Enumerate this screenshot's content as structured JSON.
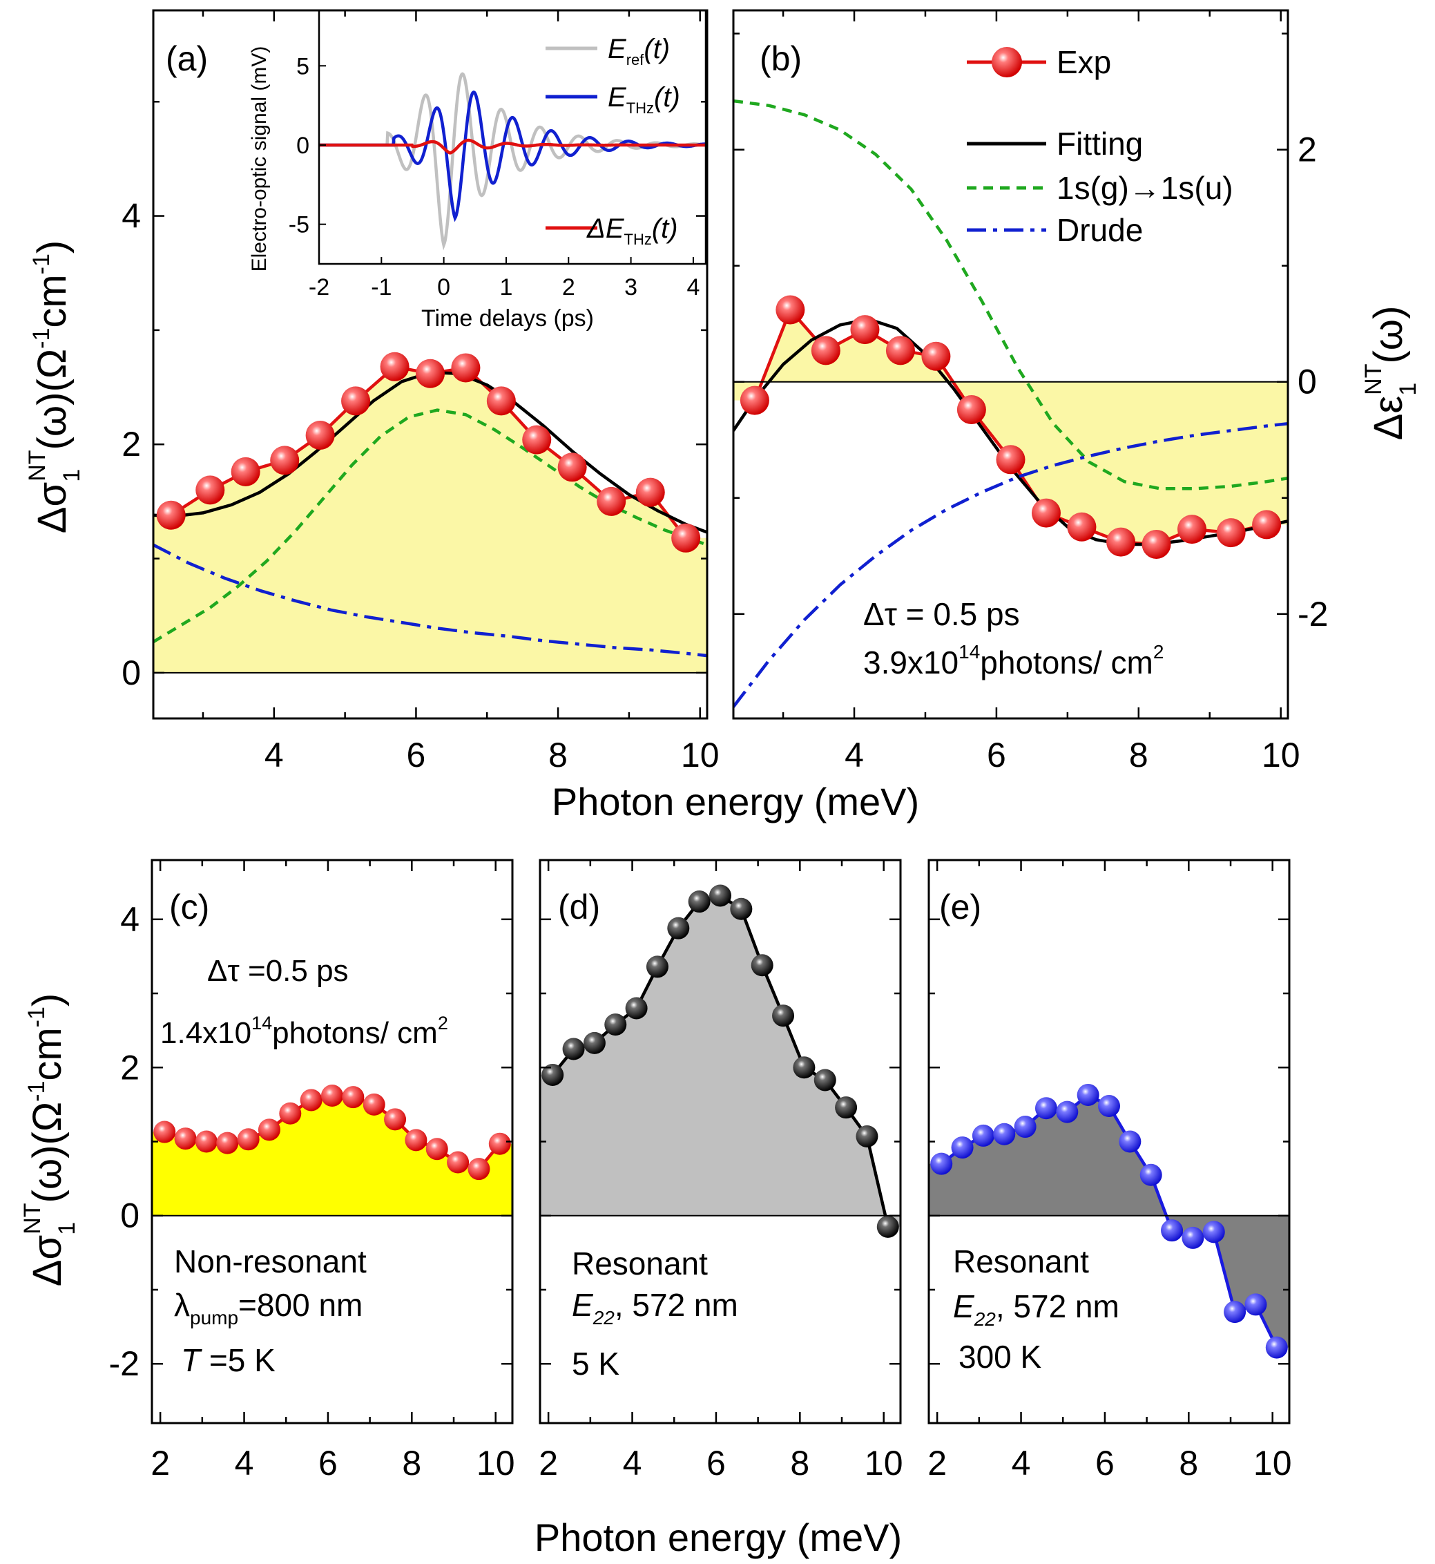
{
  "figure": {
    "xlabel_top": "Photon energy (meV)",
    "xlabel_bottom": "Photon energy (meV)",
    "ylabel_sigma": {
      "base": "Δσ",
      "sub": "1",
      "sup": "NT",
      "rest": "(ω)(Ω",
      "sup2": "-1",
      "rest2": "cm",
      "sup3": "-1",
      "close": ")"
    },
    "ylabel_eps": {
      "base": "Δε",
      "sub": "1",
      "sup": "NT",
      "rest": "(ω)"
    }
  },
  "colors": {
    "exp_red": "#e01010",
    "fit_black": "#000000",
    "exciton_green": "#1fa81f",
    "drude_blue": "#1020d0",
    "fill_yellow": "#fbf7a6",
    "fill_yellow_c": "#ffff00",
    "fill_light_gray": "#c0c0c0",
    "fill_dark_gray": "#808080",
    "ref_gray": "#c0c0c0",
    "dots_blue": "#1a1ae0"
  },
  "chart_data": [
    {
      "id": "a",
      "type": "line",
      "panel_label": "(a)",
      "xlim": [
        2.3,
        10.1
      ],
      "ylim": [
        -0.4,
        5.8
      ],
      "xticks": [
        4,
        6,
        8,
        10
      ],
      "yticks": [
        0,
        2,
        4
      ],
      "ylabel": "Δσ1NT(ω)(Ω-1cm-1)",
      "series": [
        {
          "name": "Exp",
          "style": "markers-line",
          "color": "#e01010",
          "x": [
            2.55,
            3.1,
            3.6,
            4.15,
            4.65,
            5.15,
            5.7,
            6.2,
            6.7,
            7.2,
            7.7,
            8.2,
            8.75,
            9.3,
            9.8
          ],
          "y": [
            1.38,
            1.6,
            1.76,
            1.86,
            2.08,
            2.38,
            2.68,
            2.62,
            2.67,
            2.38,
            2.04,
            1.8,
            1.5,
            1.58,
            1.18
          ]
        },
        {
          "name": "Fitting",
          "style": "line",
          "color": "#000000",
          "x": [
            2.3,
            2.6,
            3.0,
            3.4,
            3.8,
            4.2,
            4.6,
            5.0,
            5.4,
            5.8,
            6.2,
            6.6,
            7.0,
            7.4,
            7.8,
            8.2,
            8.6,
            9.0,
            9.4,
            9.8,
            10.1
          ],
          "y": [
            1.38,
            1.37,
            1.4,
            1.47,
            1.58,
            1.74,
            1.94,
            2.16,
            2.38,
            2.55,
            2.63,
            2.62,
            2.52,
            2.36,
            2.16,
            1.94,
            1.74,
            1.56,
            1.42,
            1.3,
            1.23
          ]
        },
        {
          "name": "1s(g)→1s(u)",
          "style": "dash",
          "color": "#1fa81f",
          "x": [
            2.3,
            2.7,
            3.1,
            3.5,
            3.9,
            4.3,
            4.7,
            5.1,
            5.5,
            5.9,
            6.3,
            6.7,
            7.1,
            7.5,
            7.9,
            8.3,
            8.7,
            9.1,
            9.5,
            10.1
          ],
          "y": [
            0.27,
            0.42,
            0.57,
            0.76,
            0.98,
            1.24,
            1.53,
            1.82,
            2.07,
            2.24,
            2.3,
            2.26,
            2.13,
            1.97,
            1.8,
            1.63,
            1.48,
            1.36,
            1.25,
            1.12
          ]
        },
        {
          "name": "Drude",
          "style": "dashdot",
          "color": "#1020d0",
          "x": [
            2.3,
            2.8,
            3.3,
            3.8,
            4.3,
            4.8,
            5.3,
            5.8,
            6.3,
            6.8,
            7.3,
            7.8,
            8.3,
            8.8,
            9.3,
            9.8,
            10.1
          ],
          "y": [
            1.12,
            0.96,
            0.83,
            0.72,
            0.63,
            0.55,
            0.49,
            0.44,
            0.39,
            0.35,
            0.32,
            0.28,
            0.25,
            0.22,
            0.2,
            0.17,
            0.15
          ]
        }
      ],
      "fill": {
        "under": "Exp",
        "color": "#fbf7a6"
      },
      "inset": {
        "xlabel": "Time delays (ps)",
        "ylabel": "Electro-optic signal (mV)",
        "xlim": [
          -2,
          4.2
        ],
        "ylim": [
          -7.5,
          8.5
        ],
        "xticks": [
          -2,
          -1,
          0,
          1,
          2,
          3,
          4
        ],
        "yticks": [
          -5,
          0,
          5
        ],
        "legend": [
          {
            "base": "E",
            "sub": "ref",
            "tail": "(t)",
            "color": "#c0c0c0"
          },
          {
            "base": "E",
            "sub": "THz",
            "tail": "(t)",
            "color": "#1020d0"
          },
          {
            "base": "ΔE",
            "sub": "THz",
            "tail": "(t)",
            "color": "#e01010"
          }
        ],
        "series": [
          {
            "name": "Eref(t)",
            "color": "#c0c0c0",
            "t0": 0.0,
            "amp": -6.3,
            "decay": 0.9,
            "period": 0.62,
            "start": -0.9
          },
          {
            "name": "ETHz(t)",
            "color": "#1020d0",
            "t0": 0.18,
            "amp": -4.6,
            "decay": 0.95,
            "period": 0.62,
            "start": -0.8
          },
          {
            "name": "ΔETHz(t)",
            "color": "#e01010",
            "t0": 0.1,
            "amp": -0.5,
            "decay": 0.6,
            "period": 0.62,
            "start": -0.5
          }
        ]
      }
    },
    {
      "id": "b",
      "type": "line",
      "panel_label": "(b)",
      "xlim": [
        2.3,
        10.1
      ],
      "ylim": [
        -2.9,
        3.2
      ],
      "xticks": [
        4,
        6,
        8,
        10
      ],
      "yticks": [
        -2,
        0,
        2
      ],
      "ylabel_right": "Δε1NT(ω)",
      "annotation_line1": "Δτ = 0.5 ps",
      "annotation_line2_base": "3.9x10",
      "annotation_line2_sup": "14",
      "annotation_line2_tail": "photons/ cm",
      "annotation_line2_sup2": "2",
      "legend": [
        "Exp",
        "Fitting",
        "1s(g)→1s(u)",
        "Drude"
      ],
      "series": [
        {
          "name": "Exp",
          "style": "markers-line",
          "color": "#e01010",
          "x": [
            2.6,
            3.1,
            3.6,
            4.15,
            4.65,
            5.15,
            5.65,
            6.2,
            6.7,
            7.2,
            7.75,
            8.25,
            8.75,
            9.3,
            9.8
          ],
          "y": [
            -0.16,
            0.62,
            0.27,
            0.45,
            0.27,
            0.22,
            -0.24,
            -0.67,
            -1.13,
            -1.25,
            -1.38,
            -1.4,
            -1.27,
            -1.3,
            -1.23
          ]
        },
        {
          "name": "Fitting",
          "style": "line",
          "color": "#000000",
          "x": [
            2.3,
            2.6,
            3.0,
            3.4,
            3.8,
            4.2,
            4.6,
            5.0,
            5.4,
            5.8,
            6.2,
            6.6,
            7.0,
            7.4,
            7.8,
            8.2,
            8.6,
            9.0,
            9.4,
            9.8,
            10.1
          ],
          "y": [
            -0.42,
            -0.15,
            0.15,
            0.36,
            0.49,
            0.54,
            0.46,
            0.24,
            -0.06,
            -0.4,
            -0.74,
            -1.03,
            -1.25,
            -1.36,
            -1.4,
            -1.4,
            -1.37,
            -1.33,
            -1.29,
            -1.24,
            -1.2
          ]
        },
        {
          "name": "1s(g)→1s(u)",
          "style": "dash",
          "color": "#1fa81f",
          "x": [
            2.3,
            2.8,
            3.3,
            3.8,
            4.3,
            4.8,
            5.3,
            5.8,
            6.3,
            6.8,
            7.3,
            7.8,
            8.3,
            8.8,
            9.3,
            9.8,
            10.1
          ],
          "y": [
            2.42,
            2.38,
            2.3,
            2.17,
            1.96,
            1.66,
            1.22,
            0.69,
            0.12,
            -0.36,
            -0.69,
            -0.86,
            -0.92,
            -0.92,
            -0.9,
            -0.86,
            -0.83
          ]
        },
        {
          "name": "Drude",
          "style": "dashdot",
          "color": "#1020d0",
          "x": [
            2.3,
            2.8,
            3.3,
            3.8,
            4.3,
            4.8,
            5.3,
            5.8,
            6.3,
            6.8,
            7.3,
            7.8,
            8.3,
            8.8,
            9.3,
            9.8,
            10.1
          ],
          "y": [
            -2.8,
            -2.4,
            -2.05,
            -1.75,
            -1.5,
            -1.28,
            -1.1,
            -0.95,
            -0.82,
            -0.72,
            -0.64,
            -0.57,
            -0.51,
            -0.46,
            -0.42,
            -0.38,
            -0.36
          ]
        }
      ],
      "fill": {
        "under": "Exp",
        "color": "#fbf7a6"
      }
    },
    {
      "id": "c",
      "type": "line",
      "panel_label": "(c)",
      "xlim": [
        1.8,
        10.4
      ],
      "ylim": [
        -2.8,
        4.8
      ],
      "xticks": [
        2,
        4,
        6,
        8,
        10
      ],
      "yticks": [
        -2,
        0,
        2,
        4
      ],
      "ylabel": "Δσ1NT(ω)(Ω-1cm-1)",
      "annotation_line1": "Δτ =0.5 ps",
      "annotation_line2_base": "1.4x10",
      "annotation_line2_sup": "14",
      "annotation_line2_tail": "photons/ cm",
      "annotation_line2_sup2": "2",
      "note_line1": "Non-resonant",
      "note_lambda": "λ",
      "note_lambda_sub": "pump",
      "note_lambda_tail": "=800 nm",
      "note_T_italic": "T",
      "note_T_tail": " =5 K",
      "series": [
        {
          "name": "Non-resonant",
          "style": "markers-line",
          "color": "#e01010",
          "x": [
            2.1,
            2.6,
            3.1,
            3.6,
            4.1,
            4.6,
            5.1,
            5.6,
            6.1,
            6.6,
            7.1,
            7.6,
            8.1,
            8.6,
            9.1,
            9.6,
            10.1
          ],
          "y": [
            1.13,
            1.04,
            1.0,
            0.98,
            1.03,
            1.16,
            1.38,
            1.56,
            1.62,
            1.6,
            1.5,
            1.3,
            1.02,
            0.9,
            0.72,
            0.63,
            0.97
          ]
        }
      ],
      "fill": {
        "color": "#ffff00"
      }
    },
    {
      "id": "d",
      "type": "line",
      "panel_label": "(d)",
      "xlim": [
        1.8,
        10.4
      ],
      "ylim": [
        -2.8,
        4.8
      ],
      "xticks": [
        2,
        4,
        6,
        8,
        10
      ],
      "yticks": [
        -2,
        0,
        2,
        4
      ],
      "note_line1": "Resonant",
      "note_E_italic": "E",
      "note_E_sub": "22",
      "note_E_tail": ", 572 nm",
      "note_line3": "5 K",
      "series": [
        {
          "name": "Resonant 5 K",
          "style": "markers-line",
          "color": "#000000",
          "x": [
            2.1,
            2.6,
            3.1,
            3.6,
            4.1,
            4.6,
            5.1,
            5.6,
            6.1,
            6.6,
            7.1,
            7.6,
            8.1,
            8.6,
            9.1,
            9.6,
            10.1
          ],
          "y": [
            1.9,
            2.25,
            2.33,
            2.58,
            2.8,
            3.36,
            3.88,
            4.24,
            4.32,
            4.14,
            3.38,
            2.7,
            2.0,
            1.83,
            1.46,
            1.07,
            -0.15
          ]
        }
      ],
      "fill": {
        "color": "#c0c0c0"
      }
    },
    {
      "id": "e",
      "type": "line",
      "panel_label": "(e)",
      "xlim": [
        1.8,
        10.4
      ],
      "ylim": [
        -2.8,
        4.8
      ],
      "xticks": [
        2,
        4,
        6,
        8,
        10
      ],
      "yticks": [
        -2,
        0,
        2,
        4
      ],
      "note_line1": "Resonant",
      "note_E_italic": "E",
      "note_E_sub": "22",
      "note_E_tail": ", 572 nm",
      "note_line3": "300 K",
      "series": [
        {
          "name": "Resonant 300 K",
          "style": "markers-line",
          "color": "#1a1ae0",
          "x": [
            2.1,
            2.6,
            3.1,
            3.6,
            4.1,
            4.6,
            5.1,
            5.6,
            6.1,
            6.6,
            7.1,
            7.6,
            8.1,
            8.6,
            9.1,
            9.6,
            10.1
          ],
          "y": [
            0.7,
            0.92,
            1.08,
            1.1,
            1.2,
            1.45,
            1.4,
            1.63,
            1.48,
            1.0,
            0.55,
            -0.2,
            -0.3,
            -0.22,
            -1.3,
            -1.2,
            -1.78
          ]
        }
      ],
      "fill": {
        "color": "#808080"
      }
    }
  ]
}
